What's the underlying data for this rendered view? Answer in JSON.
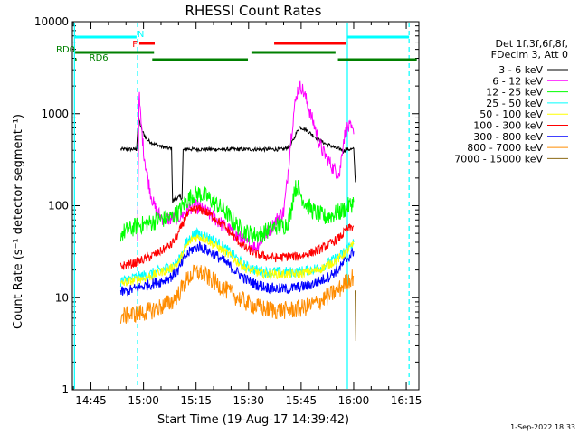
{
  "chart_data": {
    "type": "line",
    "title": "RHESSI Count Rates",
    "xlabel": "Start Time (19-Aug-17 14:39:42)",
    "ylabel": "Count Rate (s⁻¹ detector segment⁻¹)",
    "x_unit": "minutes of day",
    "xlim": [
      879.7,
      978.6
    ],
    "ylim": [
      1,
      10000
    ],
    "yscale": "log",
    "x_ticks": [
      {
        "label": "14:45",
        "value": 885
      },
      {
        "label": "15:00",
        "value": 900
      },
      {
        "label": "15:15",
        "value": 915
      },
      {
        "label": "15:30",
        "value": 930
      },
      {
        "label": "15:45",
        "value": 945
      },
      {
        "label": "16:00",
        "value": 960
      },
      {
        "label": "16:15",
        "value": 975
      }
    ],
    "y_ticks": [
      {
        "label": "1",
        "value": 1
      },
      {
        "label": "10",
        "value": 10
      },
      {
        "label": "100",
        "value": 100
      },
      {
        "label": "1000",
        "value": 1000
      },
      {
        "label": "10000",
        "value": 10000
      }
    ],
    "legend": {
      "placement": "right",
      "header": [
        "Det 1f,3f,6f,8f,",
        "FDecim 3, Att 0"
      ]
    },
    "series": [
      {
        "name": "3 - 6 keV",
        "color": "#000000",
        "x": [
          893.5,
          898,
          898.6,
          899.5,
          901,
          903,
          905,
          906.5,
          907.5,
          908,
          908.3,
          909,
          910.5,
          911,
          911.3,
          912,
          915,
          925,
          935,
          940,
          942,
          943.5,
          944.5,
          946,
          948,
          950,
          952,
          954,
          955,
          956.5,
          957,
          958,
          960,
          960.5
        ],
        "y": [
          410,
          410,
          900,
          660,
          520,
          470,
          440,
          425,
          420,
          415,
          110,
          120,
          125,
          120,
          400,
          415,
          410,
          410,
          410,
          410,
          450,
          600,
          720,
          680,
          600,
          520,
          470,
          440,
          420,
          410,
          390,
          410,
          410,
          180
        ],
        "noise": 0.02
      },
      {
        "name": "6 - 12 keV",
        "color": "#ff00ff",
        "x": [
          898.3,
          898.7,
          899.2,
          900,
          901,
          902,
          903,
          904,
          905,
          906,
          908,
          910,
          912,
          914,
          916,
          918,
          920,
          923,
          926,
          929,
          932,
          934,
          936,
          938,
          939,
          940,
          941,
          942,
          943,
          944,
          945,
          946,
          947,
          948,
          949,
          950,
          951,
          952,
          953,
          954,
          955,
          956,
          957,
          958,
          959,
          960
        ],
        "y": [
          40,
          1700,
          900,
          400,
          220,
          140,
          100,
          85,
          75,
          72,
          72,
          75,
          85,
          100,
          95,
          85,
          75,
          60,
          50,
          40,
          35,
          45,
          55,
          70,
          80,
          85,
          180,
          500,
          1100,
          1800,
          2000,
          1600,
          1200,
          900,
          700,
          500,
          400,
          350,
          300,
          260,
          240,
          220,
          500,
          700,
          700,
          600
        ],
        "noise": 0.08
      },
      {
        "name": "12 - 25 keV",
        "color": "#00ff00",
        "x": [
          893.5,
          896,
          898,
          899,
          900,
          902,
          904,
          906,
          908,
          910,
          912,
          914,
          916,
          918,
          920,
          922,
          924,
          926,
          928,
          930,
          932,
          934,
          936,
          938,
          940,
          941,
          942,
          943,
          944,
          945,
          946,
          947,
          948,
          950,
          952,
          954,
          956,
          958,
          960
        ],
        "y": [
          50,
          55,
          60,
          62,
          62,
          65,
          70,
          72,
          75,
          85,
          110,
          130,
          135,
          125,
          110,
          95,
          80,
          65,
          55,
          50,
          48,
          50,
          55,
          60,
          60,
          65,
          80,
          150,
          160,
          130,
          110,
          100,
          90,
          80,
          75,
          80,
          85,
          95,
          110
        ],
        "noise": 0.1
      },
      {
        "name": "25 - 50 keV",
        "color": "#00ffff",
        "x": [
          893.5,
          896,
          899,
          902,
          905,
          908,
          910,
          912,
          914,
          916,
          918,
          920,
          923,
          926,
          929,
          932,
          935,
          938,
          941,
          944,
          947,
          950,
          953,
          956,
          958,
          960
        ],
        "y": [
          15,
          16,
          17,
          18,
          20,
          22,
          25,
          38,
          48,
          50,
          46,
          42,
          35,
          28,
          22,
          20,
          19,
          19,
          19,
          19,
          20,
          21,
          24,
          28,
          34,
          40
        ],
        "noise": 0.06
      },
      {
        "name": "50 - 100 keV",
        "color": "#ffff00",
        "x": [
          893.5,
          896,
          899,
          902,
          905,
          908,
          910,
          912,
          914,
          916,
          918,
          920,
          923,
          926,
          929,
          932,
          935,
          938,
          941,
          944,
          947,
          950,
          953,
          956,
          958,
          960
        ],
        "y": [
          14,
          15,
          16,
          17,
          19,
          21,
          24,
          35,
          44,
          46,
          43,
          38,
          32,
          26,
          21,
          19,
          18,
          18,
          18,
          18,
          19,
          20,
          23,
          27,
          32,
          38
        ],
        "noise": 0.05
      },
      {
        "name": "100 - 300 keV",
        "color": "#ff0000",
        "x": [
          893.5,
          896,
          899,
          902,
          905,
          908,
          910,
          912,
          914,
          916,
          918,
          920,
          923,
          926,
          929,
          932,
          935,
          938,
          941,
          944,
          947,
          950,
          953,
          956,
          958,
          960
        ],
        "y": [
          22,
          23,
          25,
          28,
          32,
          38,
          50,
          75,
          90,
          92,
          85,
          75,
          60,
          45,
          35,
          30,
          28,
          27,
          28,
          28,
          30,
          33,
          38,
          45,
          55,
          60
        ],
        "noise": 0.05
      },
      {
        "name": "300 - 800 keV",
        "color": "#0000ff",
        "x": [
          893.5,
          896,
          899,
          902,
          905,
          908,
          910,
          912,
          914,
          916,
          918,
          920,
          923,
          926,
          929,
          932,
          935,
          938,
          941,
          944,
          947,
          950,
          953,
          956,
          958,
          960
        ],
        "y": [
          11.5,
          12,
          13,
          14,
          15,
          17,
          20,
          28,
          34,
          36,
          33,
          30,
          25,
          20,
          16,
          14,
          13,
          12.5,
          12.5,
          13,
          13.5,
          15,
          17,
          21,
          26,
          32
        ],
        "noise": 0.06
      },
      {
        "name": "800 - 7000 keV",
        "color": "#ff8c00",
        "x": [
          893.5,
          896,
          899,
          902,
          905,
          908,
          910,
          912,
          914,
          916,
          918,
          920,
          923,
          926,
          929,
          932,
          935,
          938,
          941,
          944,
          947,
          950,
          953,
          956,
          958,
          960
        ],
        "y": [
          6.2,
          6.5,
          6.8,
          7.2,
          8,
          9,
          11,
          15,
          18,
          19,
          17,
          15,
          12.5,
          10.5,
          9,
          8,
          7.5,
          7.3,
          7.3,
          7.5,
          8,
          9,
          10.5,
          12.5,
          15,
          17
        ],
        "noise": 0.1
      },
      {
        "name": "7000 - 15000 keV",
        "color": "#8b6914",
        "x": [
          960.4,
          960.6
        ],
        "y": [
          12,
          3.4
        ],
        "noise": 0
      }
    ],
    "vertical_lines": [
      {
        "x": 880.3,
        "color": "#00ffff",
        "style": "solid"
      },
      {
        "x": 898.3,
        "color": "#00ffff",
        "style": "dashed"
      },
      {
        "x": 958.2,
        "color": "#00ffff",
        "style": "solid"
      },
      {
        "x": 975.8,
        "color": "#00ffff",
        "style": "dashed"
      }
    ],
    "flag_bars": [
      {
        "color": "#00ffff",
        "label": "N",
        "y": 41,
        "segments": [
          [
            880.3,
            898.0
          ],
          [
            958.2,
            975.8
          ]
        ]
      },
      {
        "color": "#ff0000",
        "label": "F",
        "y": 48,
        "segments": [
          [
            898.8,
            903.2
          ],
          [
            937.3,
            957.8
          ]
        ]
      },
      {
        "color": "#008000",
        "label": "RD0",
        "y": 58,
        "segments": [
          [
            880.5,
            903.0
          ],
          [
            930.8,
            954.8
          ]
        ]
      },
      {
        "color": "#008000",
        "label": "RD6",
        "y": 66,
        "segments": [
          [
            880.5,
            880.9
          ],
          [
            902.5,
            929.8
          ],
          [
            955.5,
            978.0
          ]
        ]
      }
    ],
    "footer": "1-Sep-2022 18:33"
  }
}
